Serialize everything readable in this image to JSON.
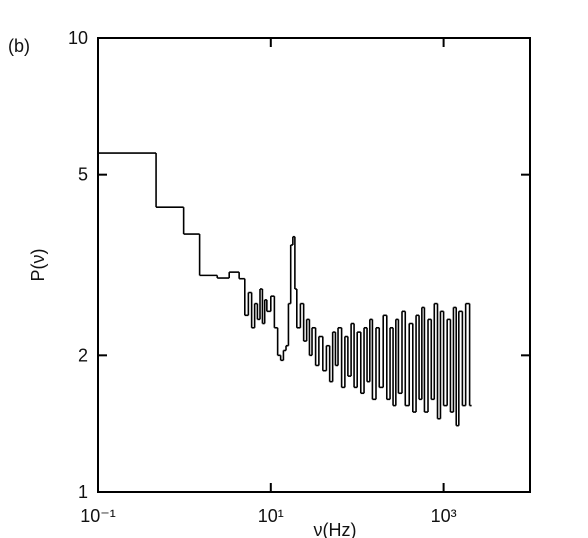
{
  "chart_data": {
    "type": "step",
    "panel_label": "(b)",
    "xlabel": "ν(Hz)",
    "ylabel": "P(ν)",
    "xscale": "log",
    "yscale": "log",
    "color": "#000000",
    "xlim": [
      0.1,
      10000
    ],
    "ylim": [
      1,
      10
    ],
    "xticks": [
      {
        "value": 0.1,
        "label": "10⁻¹"
      },
      {
        "value": 10,
        "label": "10¹"
      },
      {
        "value": 1000,
        "label": "10³"
      }
    ],
    "yticks": [
      1,
      2,
      5,
      10
    ],
    "x": [
      0.1,
      0.47,
      0.98,
      1.5,
      2.4,
      3.3,
      4.3,
      5.0,
      5.5,
      6.0,
      6.5,
      7.0,
      7.5,
      8.0,
      8.5,
      9.0,
      10,
      11,
      12,
      13,
      14,
      15,
      16,
      17,
      18,
      19,
      20,
      22,
      24,
      26,
      28,
      30,
      33,
      36,
      40,
      44,
      48,
      52,
      56,
      60,
      66,
      72,
      78,
      85,
      92,
      100,
      110,
      120,
      130,
      140,
      150,
      165,
      180,
      200,
      220,
      240,
      260,
      280,
      300,
      330,
      360,
      400,
      440,
      480,
      520,
      560,
      600,
      660,
      720,
      780,
      850,
      920,
      1000,
      1100,
      1200,
      1300,
      1400,
      1500,
      1650,
      1800,
      2000
    ],
    "values": [
      5.58,
      4.24,
      3.7,
      3.0,
      2.96,
      3.05,
      2.95,
      2.45,
      2.75,
      2.3,
      2.6,
      2.4,
      2.8,
      2.35,
      2.65,
      2.5,
      2.7,
      2.3,
      2.0,
      1.95,
      2.05,
      2.1,
      2.6,
      3.5,
      3.65,
      2.8,
      2.3,
      2.6,
      2.15,
      2.4,
      2.0,
      2.3,
      1.9,
      2.2,
      1.85,
      2.1,
      1.75,
      2.25,
      1.9,
      2.3,
      1.7,
      2.2,
      1.8,
      2.35,
      1.7,
      2.25,
      1.65,
      2.3,
      1.75,
      2.4,
      1.6,
      2.3,
      1.7,
      2.45,
      1.6,
      2.3,
      1.55,
      2.4,
      1.65,
      2.5,
      1.55,
      2.35,
      1.5,
      2.45,
      1.6,
      2.55,
      1.5,
      2.4,
      1.6,
      2.6,
      1.45,
      2.5,
      1.55,
      2.4,
      1.5,
      2.55,
      1.4,
      2.5,
      1.55,
      2.6,
      1.55
    ]
  }
}
